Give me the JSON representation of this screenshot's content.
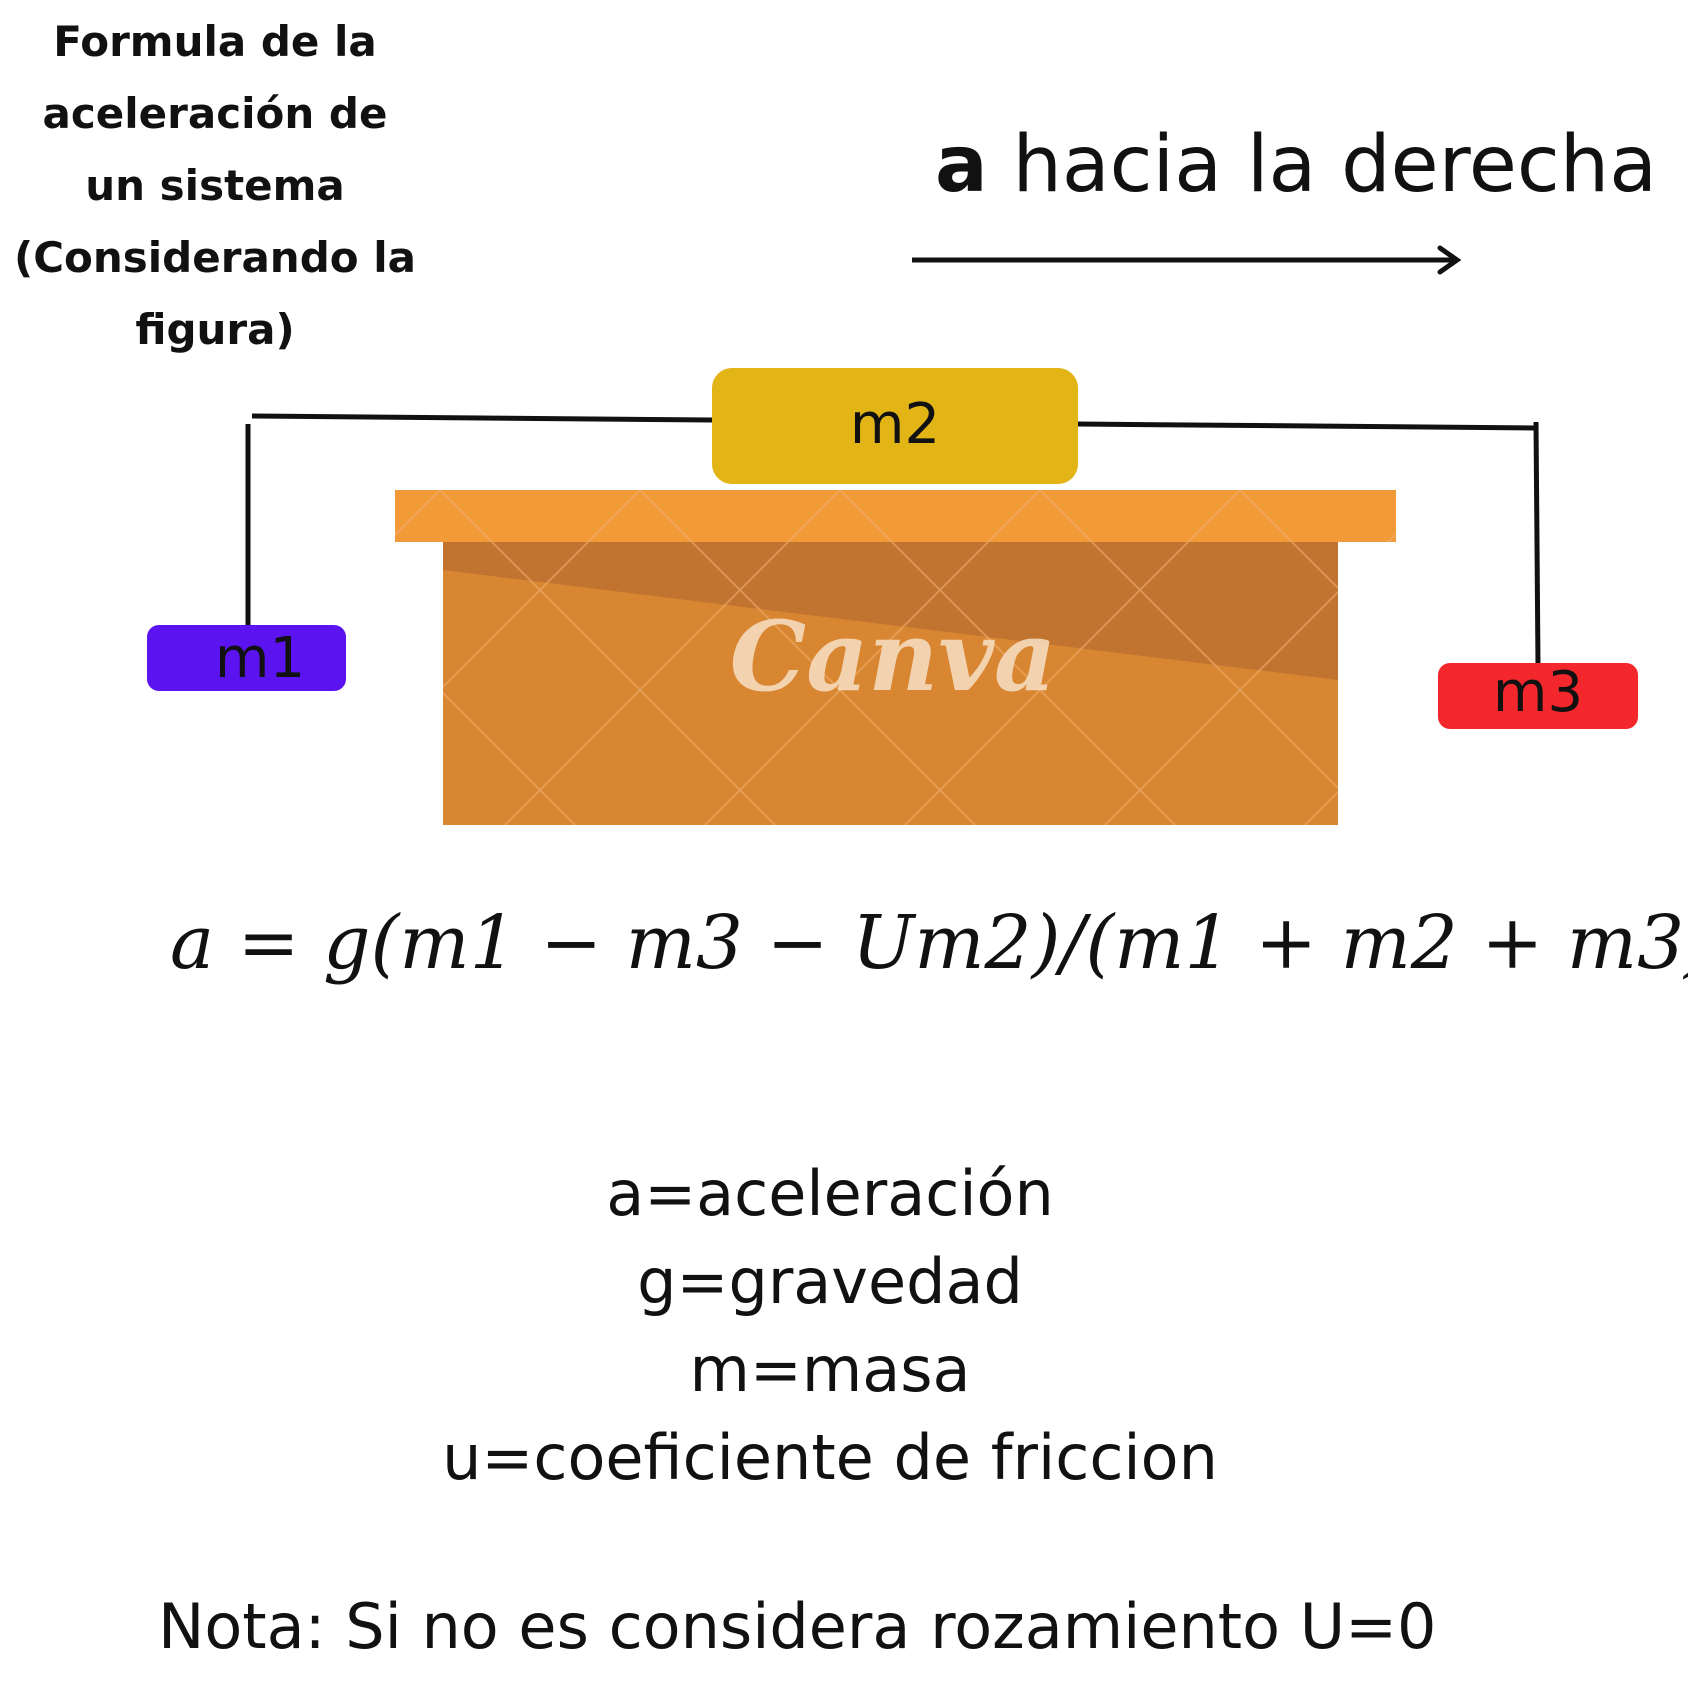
{
  "title_lines": [
    "Formula de la",
    "aceleración de",
    "un sistema",
    "(Considerando la",
    "figura)"
  ],
  "direction": {
    "symbol": "a",
    "text": "hacia la derecha"
  },
  "masses": {
    "m1": {
      "label": "m1",
      "color": "#5b14f0"
    },
    "m2": {
      "label": "m2",
      "color": "#e2b415"
    },
    "m3": {
      "label": "m3",
      "color": "#f4282c"
    }
  },
  "table_colors": {
    "top": "#f29a38",
    "body": "#d88632",
    "shade": "#c07430"
  },
  "watermark": "Canva",
  "formula": "a = g(m1 − m3 − Um2)/(m1 + m2 + m3)",
  "legend": [
    "a=aceleración",
    "g=gravedad",
    "m=masa",
    "u=coeficiente de friccion"
  ],
  "note": "Nota: Si no es considera  rozamiento U=0"
}
